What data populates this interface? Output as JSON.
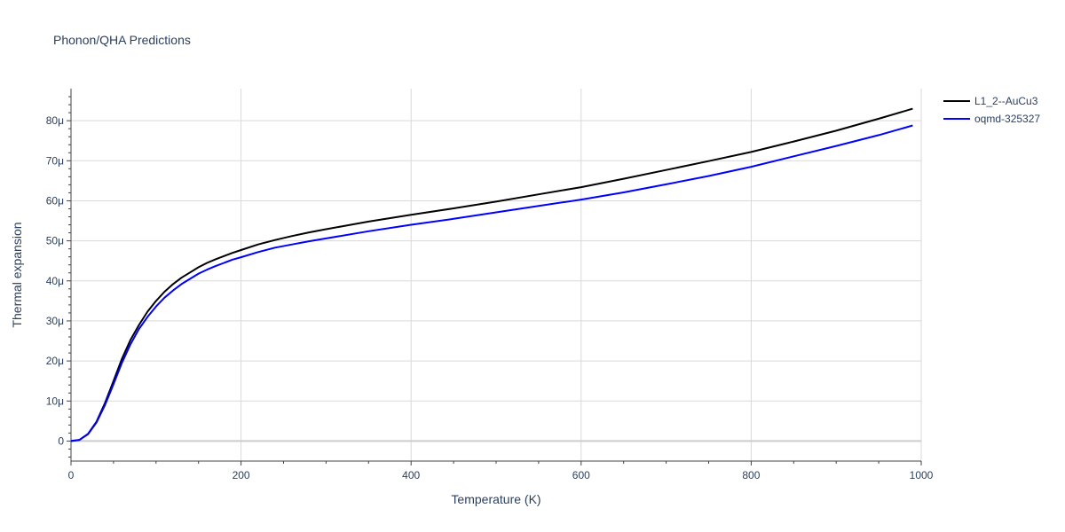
{
  "chart_data": {
    "type": "line",
    "title": "Phonon/QHA Predictions",
    "xlabel": "Temperature (K)",
    "ylabel": "Thermal expansion",
    "xlim": [
      0,
      1000
    ],
    "ylim": [
      -5,
      88
    ],
    "x_ticks": [
      0,
      200,
      400,
      600,
      800,
      1000
    ],
    "x_tick_labels": [
      "0",
      "200",
      "400",
      "600",
      "800",
      "1000"
    ],
    "y_ticks": [
      0,
      10,
      20,
      30,
      40,
      50,
      60,
      70,
      80
    ],
    "y_tick_labels": [
      "0",
      "10μ",
      "20μ",
      "30μ",
      "40μ",
      "50μ",
      "60μ",
      "70μ",
      "80μ"
    ],
    "y_unit_scale": "micro (1e-6)",
    "grid": true,
    "legend_position": "top-right",
    "series": [
      {
        "name": "L1_2--AuCu3",
        "color": "#000000",
        "x": [
          0,
          10,
          20,
          30,
          40,
          50,
          60,
          70,
          80,
          90,
          100,
          110,
          120,
          130,
          140,
          150,
          160,
          170,
          180,
          190,
          200,
          220,
          240,
          260,
          280,
          300,
          350,
          400,
          450,
          500,
          550,
          600,
          650,
          700,
          750,
          800,
          850,
          900,
          950,
          990
        ],
        "y": [
          0,
          0.3,
          1.8,
          4.8,
          9.5,
          15,
          20.6,
          25.3,
          29,
          32.3,
          35,
          37.3,
          39.2,
          40.8,
          42.1,
          43.4,
          44.5,
          45.4,
          46.2,
          47,
          47.7,
          49.1,
          50.2,
          51.2,
          52.1,
          52.9,
          54.8,
          56.5,
          58.1,
          59.8,
          61.6,
          63.4,
          65.5,
          67.7,
          69.9,
          72.2,
          74.8,
          77.5,
          80.5,
          83
        ]
      },
      {
        "name": "oqmd-325327",
        "color": "#0000ff",
        "x": [
          0,
          10,
          20,
          30,
          40,
          50,
          60,
          70,
          80,
          90,
          100,
          110,
          120,
          130,
          140,
          150,
          160,
          170,
          180,
          190,
          200,
          220,
          240,
          260,
          280,
          300,
          350,
          400,
          450,
          500,
          550,
          600,
          650,
          700,
          750,
          800,
          850,
          900,
          950,
          990
        ],
        "y": [
          0,
          0.3,
          1.7,
          4.6,
          9,
          14.2,
          19.6,
          24.2,
          28,
          31,
          33.6,
          35.8,
          37.6,
          39.2,
          40.5,
          41.8,
          42.8,
          43.7,
          44.5,
          45.3,
          45.9,
          47.2,
          48.3,
          49.1,
          49.9,
          50.6,
          52.4,
          54,
          55.5,
          57.1,
          58.7,
          60.3,
          62.1,
          64.1,
          66.2,
          68.5,
          71.1,
          73.7,
          76.4,
          78.8
        ]
      }
    ]
  }
}
